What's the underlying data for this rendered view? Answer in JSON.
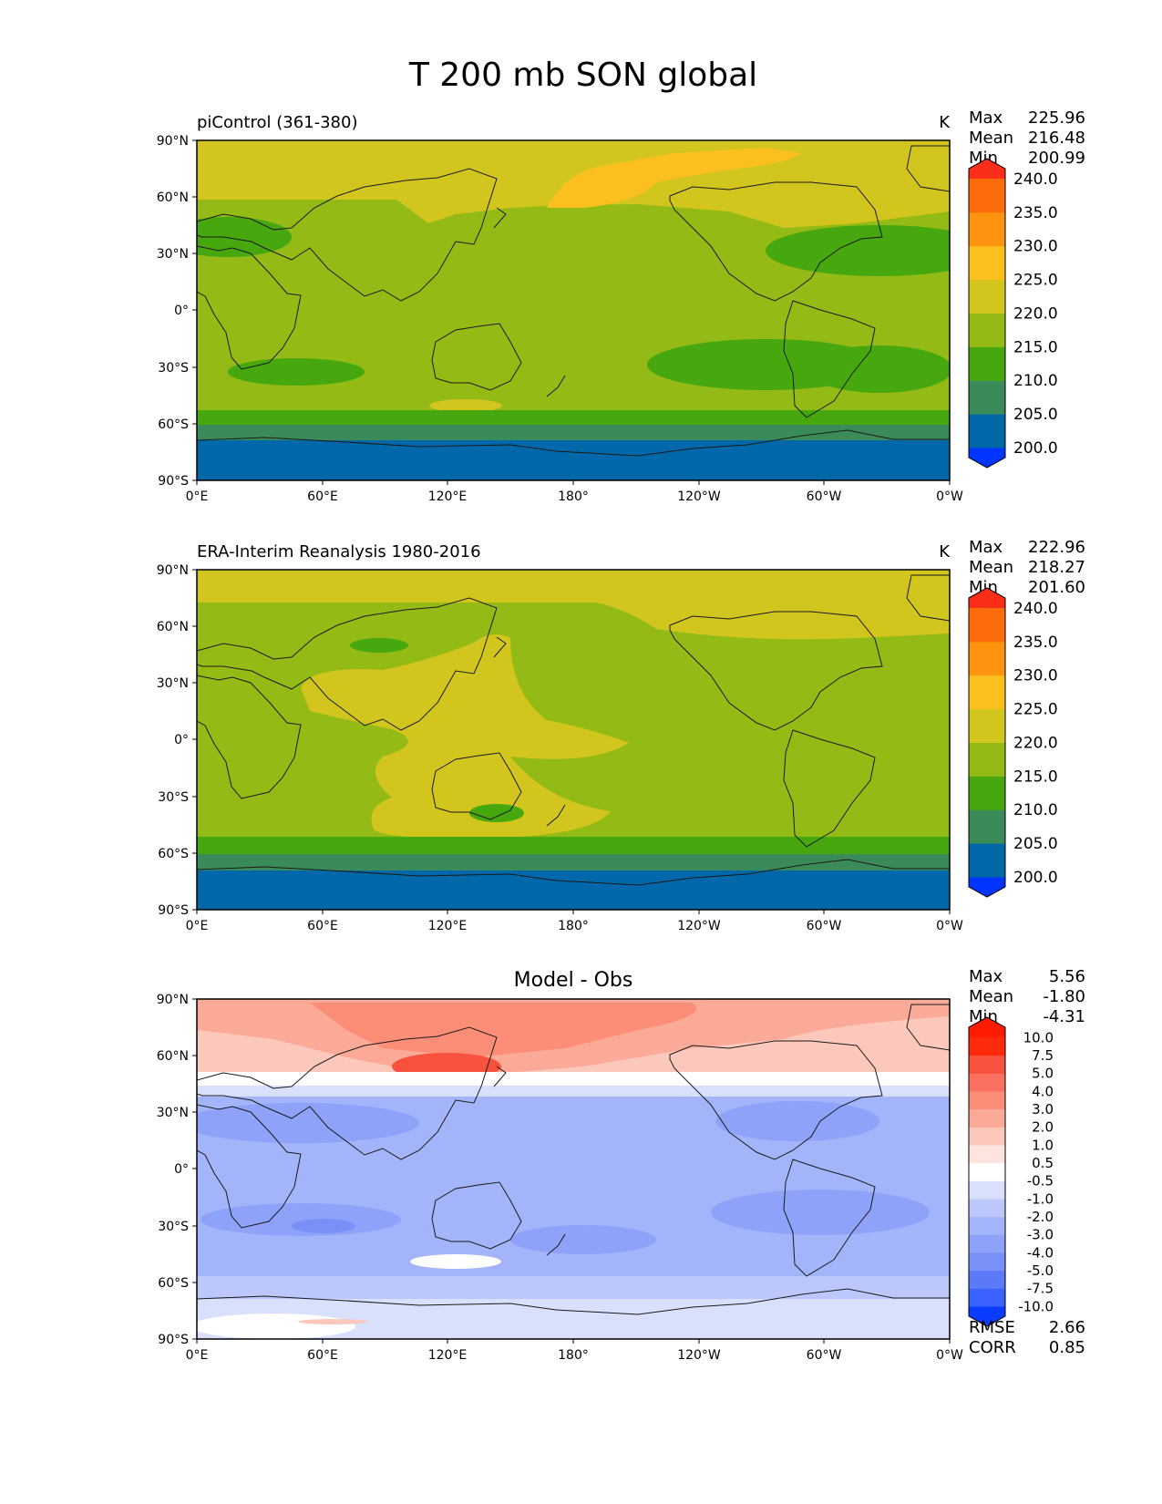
{
  "figure_title": "T 200 mb SON global",
  "x_ticks": [
    "0°E",
    "60°E",
    "120°E",
    "180°",
    "120°W",
    "60°W",
    "0°W"
  ],
  "y_ticks": [
    "90°N",
    "60°N",
    "30°N",
    "0°",
    "30°S",
    "60°S",
    "90°S"
  ],
  "panels": [
    {
      "id": "model",
      "title_left": "piControl (361-380)",
      "title_center": "",
      "units": "K",
      "stats": [
        {
          "label": "Max",
          "value": "225.96"
        },
        {
          "label": "Mean",
          "value": "216.48"
        },
        {
          "label": "Min",
          "value": "200.99"
        }
      ],
      "colorbar": {
        "levels": [
          "200.0",
          "205.0",
          "210.0",
          "215.0",
          "220.0",
          "225.0",
          "230.0",
          "235.0",
          "240.0"
        ],
        "colors": [
          "#0034ff",
          "#0068a8",
          "#3a8a5a",
          "#46a80e",
          "#94ba16",
          "#d2c61e",
          "#fcc01e",
          "#fc9410",
          "#fc6c0a",
          "#fc2e1a"
        ]
      },
      "footer_stats": []
    },
    {
      "id": "obs",
      "title_left": "ERA-Interim Reanalysis 1980-2016",
      "title_center": "",
      "units": "K",
      "stats": [
        {
          "label": "Max",
          "value": "222.96"
        },
        {
          "label": "Mean",
          "value": "218.27"
        },
        {
          "label": "Min",
          "value": "201.60"
        }
      ],
      "colorbar": {
        "levels": [
          "200.0",
          "205.0",
          "210.0",
          "215.0",
          "220.0",
          "225.0",
          "230.0",
          "235.0",
          "240.0"
        ],
        "colors": [
          "#0034ff",
          "#0068a8",
          "#3a8a5a",
          "#46a80e",
          "#94ba16",
          "#d2c61e",
          "#fcc01e",
          "#fc9410",
          "#fc6c0a",
          "#fc2e1a"
        ]
      },
      "footer_stats": []
    },
    {
      "id": "diff",
      "title_left": "",
      "title_center": "Model - Obs",
      "units": "",
      "stats": [
        {
          "label": "Max",
          "value": "5.56"
        },
        {
          "label": "Mean",
          "value": "-1.80"
        },
        {
          "label": "Min",
          "value": "-4.31"
        }
      ],
      "colorbar": {
        "levels": [
          "-10.0",
          "-7.5",
          "-5.0",
          "-4.0",
          "-3.0",
          "-2.0",
          "-1.0",
          "-0.5",
          "0.5",
          "1.0",
          "2.0",
          "3.0",
          "4.0",
          "5.0",
          "7.5",
          "10.0"
        ],
        "colors": [
          "#0a3cff",
          "#3a62ff",
          "#5a7af8",
          "#7890f8",
          "#8ea2fa",
          "#a4b4fa",
          "#bcc8fc",
          "#d8e0fc",
          "#ffffff",
          "#fde4de",
          "#fcc8bc",
          "#fcaa98",
          "#fc8e78",
          "#fc7060",
          "#f8523e",
          "#ff2a0c",
          "#ff1c00"
        ]
      },
      "footer_stats": [
        {
          "label": "RMSE",
          "value": "2.66"
        },
        {
          "label": "CORR",
          "value": "0.85"
        }
      ]
    }
  ]
}
